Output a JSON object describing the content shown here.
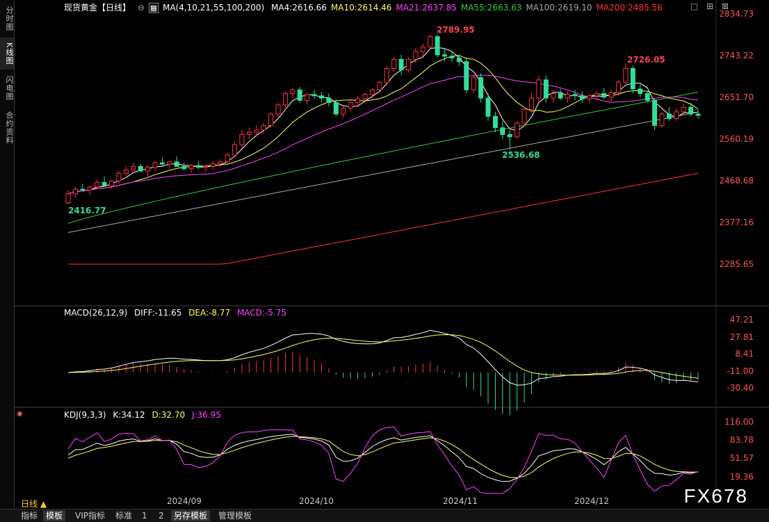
{
  "sidebar": {
    "tabs": [
      {
        "label": "分时图",
        "active": false
      },
      {
        "label": "K线图",
        "active": true
      },
      {
        "label": "闪电图",
        "active": false
      },
      {
        "label": "合约资料",
        "active": false
      }
    ]
  },
  "main_panel": {
    "title": "现货黄金【日线】",
    "ma_label": "MA(4,10,21,55,100,200)",
    "ma_values": [
      {
        "label": "MA4:2616.66",
        "color": "#ffffff"
      },
      {
        "label": "MA10:2614.46",
        "color": "#ffff66"
      },
      {
        "label": "MA21:2637.85",
        "color": "#ff44ff"
      },
      {
        "label": "MA55:2663.63",
        "color": "#33cc33"
      },
      {
        "label": "MA100:2619.10",
        "color": "#aaaaaa"
      },
      {
        "label": "MA200:2485.56",
        "color": "#ff3333"
      }
    ],
    "y_ticks": [
      "2834.73",
      "2743.22",
      "2651.70",
      "2560.19",
      "2468.68",
      "2377.16",
      "2285.65"
    ],
    "annotations": {
      "high": "2789.95",
      "high2": "2726.05",
      "low": "2536.68",
      "low_start": "2416.77"
    }
  },
  "macd_panel": {
    "title": "MACD(26,12,9)",
    "diff": "DIFF:-11.65",
    "dea": "DEA:-8.77",
    "macd": "MACD:-5.75",
    "y_ticks": [
      "47.21",
      "27.81",
      "8.41",
      "-11.00",
      "-30.40"
    ]
  },
  "kdj_panel": {
    "title": "KDJ(9,3,3)",
    "k": "K:34.12",
    "d": "D:32.70",
    "j": "J:36.95",
    "y_ticks": [
      "116.00",
      "83.78",
      "51.57",
      "19.36"
    ]
  },
  "x_axis": [
    "2024/09",
    "2024/10",
    "2024/11",
    "2024/12"
  ],
  "period_label": "日线 ▲",
  "watermark": "FX678",
  "bottom_tabs": [
    {
      "label": "指标",
      "active": false
    },
    {
      "label": "模板",
      "active": true
    },
    {
      "label": "VIP指标",
      "active": false
    },
    {
      "label": "标准",
      "active": false
    },
    {
      "label": "1",
      "active": false
    },
    {
      "label": "2",
      "active": false
    },
    {
      "label": "另存模板",
      "active": true
    },
    {
      "label": "管理模板",
      "active": false
    }
  ],
  "chart_data": {
    "type": "candlestick",
    "title": "现货黄金【日线】",
    "ylim": [
      2285.65,
      2834.73
    ],
    "candles": [
      [
        2420,
        2448,
        2416.77,
        2440
      ],
      [
        2440,
        2455,
        2432,
        2450
      ],
      [
        2450,
        2462,
        2445,
        2448
      ],
      [
        2448,
        2458,
        2438,
        2455
      ],
      [
        2455,
        2470,
        2450,
        2465
      ],
      [
        2465,
        2478,
        2460,
        2458
      ],
      [
        2458,
        2470,
        2452,
        2468
      ],
      [
        2468,
        2490,
        2462,
        2485
      ],
      [
        2485,
        2500,
        2478,
        2492
      ],
      [
        2492,
        2508,
        2486,
        2500
      ],
      [
        2500,
        2506,
        2488,
        2490
      ],
      [
        2490,
        2502,
        2478,
        2498
      ],
      [
        2498,
        2512,
        2490,
        2508
      ],
      [
        2508,
        2520,
        2500,
        2505
      ],
      [
        2505,
        2512,
        2494,
        2510
      ],
      [
        2510,
        2522,
        2504,
        2500
      ],
      [
        2500,
        2508,
        2490,
        2495
      ],
      [
        2495,
        2505,
        2486,
        2502
      ],
      [
        2502,
        2512,
        2494,
        2498
      ],
      [
        2498,
        2505,
        2488,
        2500
      ],
      [
        2500,
        2512,
        2494,
        2506
      ],
      [
        2506,
        2516,
        2498,
        2510
      ],
      [
        2510,
        2530,
        2505,
        2525
      ],
      [
        2525,
        2555,
        2520,
        2548
      ],
      [
        2548,
        2580,
        2540,
        2570
      ],
      [
        2570,
        2585,
        2560,
        2575
      ],
      [
        2575,
        2590,
        2565,
        2580
      ],
      [
        2580,
        2596,
        2572,
        2590
      ],
      [
        2590,
        2620,
        2585,
        2615
      ],
      [
        2615,
        2640,
        2608,
        2635
      ],
      [
        2635,
        2665,
        2628,
        2660
      ],
      [
        2660,
        2672,
        2650,
        2668
      ],
      [
        2668,
        2674,
        2640,
        2645
      ],
      [
        2645,
        2662,
        2636,
        2658
      ],
      [
        2658,
        2668,
        2648,
        2655
      ],
      [
        2655,
        2664,
        2640,
        2650
      ],
      [
        2650,
        2660,
        2632,
        2640
      ],
      [
        2640,
        2648,
        2610,
        2615
      ],
      [
        2615,
        2632,
        2606,
        2628
      ],
      [
        2628,
        2644,
        2620,
        2640
      ],
      [
        2640,
        2655,
        2630,
        2648
      ],
      [
        2648,
        2662,
        2640,
        2658
      ],
      [
        2658,
        2672,
        2650,
        2668
      ],
      [
        2668,
        2688,
        2660,
        2684
      ],
      [
        2684,
        2720,
        2678,
        2715
      ],
      [
        2715,
        2740,
        2708,
        2735
      ],
      [
        2735,
        2745,
        2700,
        2712
      ],
      [
        2712,
        2740,
        2706,
        2735
      ],
      [
        2735,
        2760,
        2728,
        2752
      ],
      [
        2752,
        2770,
        2742,
        2762
      ],
      [
        2762,
        2790,
        2758,
        2785
      ],
      [
        2785,
        2789.95,
        2740,
        2745
      ],
      [
        2745,
        2760,
        2730,
        2742
      ],
      [
        2742,
        2752,
        2728,
        2738
      ],
      [
        2738,
        2746,
        2720,
        2730
      ],
      [
        2730,
        2740,
        2660,
        2668
      ],
      [
        2668,
        2700,
        2660,
        2695
      ],
      [
        2695,
        2705,
        2640,
        2650
      ],
      [
        2650,
        2660,
        2600,
        2610
      ],
      [
        2610,
        2620,
        2575,
        2585
      ],
      [
        2585,
        2600,
        2560,
        2570
      ],
      [
        2570,
        2580,
        2536.68,
        2565
      ],
      [
        2565,
        2600,
        2560,
        2595
      ],
      [
        2595,
        2630,
        2588,
        2625
      ],
      [
        2625,
        2660,
        2618,
        2650
      ],
      [
        2650,
        2700,
        2640,
        2690
      ],
      [
        2690,
        2700,
        2640,
        2650
      ],
      [
        2650,
        2668,
        2640,
        2660
      ],
      [
        2660,
        2670,
        2645,
        2650
      ],
      [
        2650,
        2665,
        2640,
        2658
      ],
      [
        2658,
        2668,
        2645,
        2655
      ],
      [
        2655,
        2665,
        2640,
        2648
      ],
      [
        2648,
        2660,
        2638,
        2655
      ],
      [
        2655,
        2665,
        2645,
        2660
      ],
      [
        2660,
        2672,
        2648,
        2652
      ],
      [
        2652,
        2668,
        2640,
        2662
      ],
      [
        2662,
        2690,
        2655,
        2685
      ],
      [
        2685,
        2726.05,
        2680,
        2715
      ],
      [
        2715,
        2722,
        2660,
        2670
      ],
      [
        2670,
        2680,
        2652,
        2660
      ],
      [
        2660,
        2665,
        2640,
        2645
      ],
      [
        2645,
        2650,
        2580,
        2590
      ],
      [
        2590,
        2620,
        2585,
        2615
      ],
      [
        2615,
        2630,
        2600,
        2605
      ],
      [
        2605,
        2628,
        2600,
        2620
      ],
      [
        2620,
        2638,
        2612,
        2630
      ],
      [
        2630,
        2640,
        2610,
        2615
      ],
      [
        2615,
        2625,
        2605,
        2612
      ]
    ]
  }
}
